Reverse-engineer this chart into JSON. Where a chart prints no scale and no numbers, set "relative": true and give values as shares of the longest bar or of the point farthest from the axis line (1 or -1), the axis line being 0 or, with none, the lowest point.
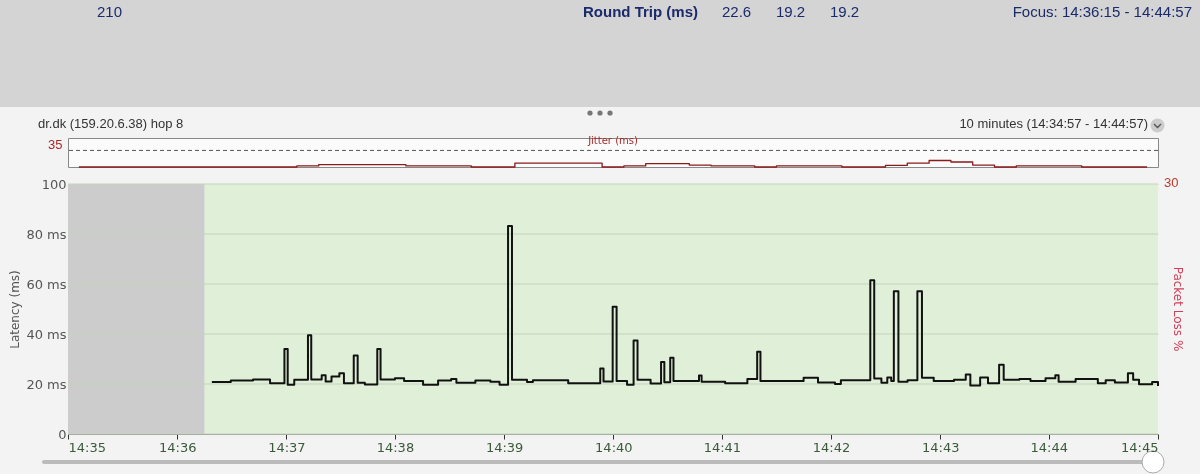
{
  "chart_data": [
    {
      "type": "step",
      "title": "Jitter (ms)",
      "annotations": [
        "210",
        "Round Trip (ms)",
        "22.6",
        "19.2",
        "19.2",
        "Focus: 14:36:15 - 14:44:57",
        "dr.dk (159.20.6.38) hop 8",
        "10 minutes (14:34:57 - 14:44:57)",
        "35"
      ],
      "relative": true,
      "categories": [
        null,
        null,
        null,
        null,
        null,
        null,
        null,
        null,
        null,
        null,
        null,
        null,
        null,
        null,
        null,
        null,
        null,
        null,
        null,
        null,
        null,
        null,
        null,
        null,
        null,
        null,
        null,
        null,
        null,
        null,
        null,
        null,
        null,
        null,
        null,
        null,
        null,
        null,
        null,
        null,
        null,
        null,
        null,
        null,
        null,
        null,
        null,
        null,
        null,
        null
      ],
      "ref_lines": [
        {
          "axis": "y",
          "value": 2.54,
          "color": "#555555",
          "line_style": "dashed"
        }
      ],
      "series": [
        {
          "color": "#8b1a1a",
          "values": [
            0,
            0,
            0,
            0,
            0,
            0,
            0,
            0,
            0,
            0,
            0.17,
            0.36,
            0.36,
            0.36,
            0.36,
            0.17,
            0.17,
            0.17,
            0,
            0,
            0.59,
            0.59,
            0.59,
            0.59,
            0,
            0.17,
            0.53,
            0.53,
            0.29,
            0.17,
            0.17,
            0,
            0.17,
            0.17,
            0.17,
            0,
            0,
            0.24,
            0.59,
            1,
            0.77,
            0.29,
            0,
            0.17,
            0.17,
            0.17,
            0,
            0,
            0,
            0
          ]
        }
      ]
    },
    {
      "type": "step",
      "ylabel": "Latency (ms)",
      "y2label": "Packet Loss %",
      "annotations": [
        "30"
      ],
      "xlim": [
        14.5833,
        14.75
      ],
      "ylim": [
        0,
        100
      ],
      "yticks": [
        0,
        {
          "value": 20,
          "label": "20 ms"
        },
        {
          "value": 40,
          "label": "40 ms"
        },
        {
          "value": 60,
          "label": "60 ms"
        },
        {
          "value": 80,
          "label": "80 ms"
        },
        100
      ],
      "grid": "y",
      "xticks": [
        {
          "value": 14.5833,
          "label": "14:35"
        },
        {
          "value": 14.6,
          "label": "14:36"
        },
        {
          "value": 14.6167,
          "label": "14:37"
        },
        {
          "value": 14.6333,
          "label": "14:38"
        },
        {
          "value": 14.65,
          "label": "14:39"
        },
        {
          "value": 14.6667,
          "label": "14:40"
        },
        {
          "value": 14.6833,
          "label": "14:41"
        },
        {
          "value": 14.7,
          "label": "14:42"
        },
        {
          "value": 14.7167,
          "label": "14:43"
        },
        {
          "value": 14.7333,
          "label": "14:44"
        },
        {
          "value": 14.75,
          "label": "14:45"
        }
      ],
      "bands": [
        {
          "axis": "x",
          "from": 14.5833,
          "to": 14.6042,
          "color": "#cccccc"
        },
        {
          "axis": "x",
          "from": 14.6042,
          "to": 14.75,
          "color": "#e0efd7"
        }
      ],
      "series": [
        {
          "color": "#111111",
          "x": [
            14.6053,
            14.6082,
            14.6116,
            14.6142,
            14.6164,
            14.6169,
            14.6179,
            14.62,
            14.6205,
            14.6221,
            14.6227,
            14.6236,
            14.6248,
            14.6255,
            14.627,
            14.6276,
            14.6287,
            14.6306,
            14.6311,
            14.6333,
            14.6347,
            14.6376,
            14.6399,
            14.6419,
            14.6427,
            14.6456,
            14.6479,
            14.6493,
            14.6506,
            14.6512,
            14.6535,
            14.6544,
            14.6598,
            14.6647,
            14.6652,
            14.6666,
            14.6672,
            14.6688,
            14.6698,
            14.6704,
            14.6724,
            14.674,
            14.6745,
            14.6754,
            14.6759,
            14.6798,
            14.6802,
            14.6838,
            14.6872,
            14.6887,
            14.6892,
            14.6958,
            14.698,
            14.7006,
            14.7015,
            14.706,
            14.7066,
            14.7077,
            14.7086,
            14.7092,
            14.7096,
            14.7103,
            14.7117,
            14.7132,
            14.7139,
            14.7157,
            14.7188,
            14.7206,
            14.7213,
            14.7228,
            14.724,
            14.7257,
            14.7264,
            14.7288,
            14.7305,
            14.7328,
            14.7343,
            14.7348,
            14.7374,
            14.7408,
            14.742,
            14.7434,
            14.7454,
            14.7462,
            14.7471,
            14.7491,
            14.75
          ],
          "values": [
            20.8,
            21.4,
            21.8,
            20.3,
            34,
            19.7,
            21.7,
            39.5,
            21.8,
            23.5,
            21,
            23,
            24.3,
            20.3,
            31.4,
            20.5,
            19.8,
            34,
            21.8,
            22.3,
            21.2,
            19.7,
            21.4,
            22,
            20.5,
            21.4,
            20.9,
            19.7,
            83.2,
            21.7,
            20.8,
            21.5,
            20.3,
            26.2,
            21,
            50.9,
            21.2,
            19.7,
            37.4,
            21.7,
            20.2,
            28.8,
            20.7,
            30.5,
            21.2,
            23.4,
            20.9,
            20.3,
            22,
            32.9,
            21.2,
            22.5,
            20.6,
            20,
            21.5,
            61.5,
            22.2,
            20.5,
            22.6,
            21.2,
            57.1,
            20.9,
            21.5,
            57.1,
            22.5,
            21.2,
            21.7,
            23.8,
            19.4,
            22.6,
            20.3,
            27.7,
            21.7,
            22,
            21.2,
            22.3,
            23.5,
            20.9,
            22,
            20.3,
            21.5,
            20.6,
            24.3,
            21.7,
            19.9,
            20.8,
            19.2
          ]
        }
      ]
    }
  ]
}
